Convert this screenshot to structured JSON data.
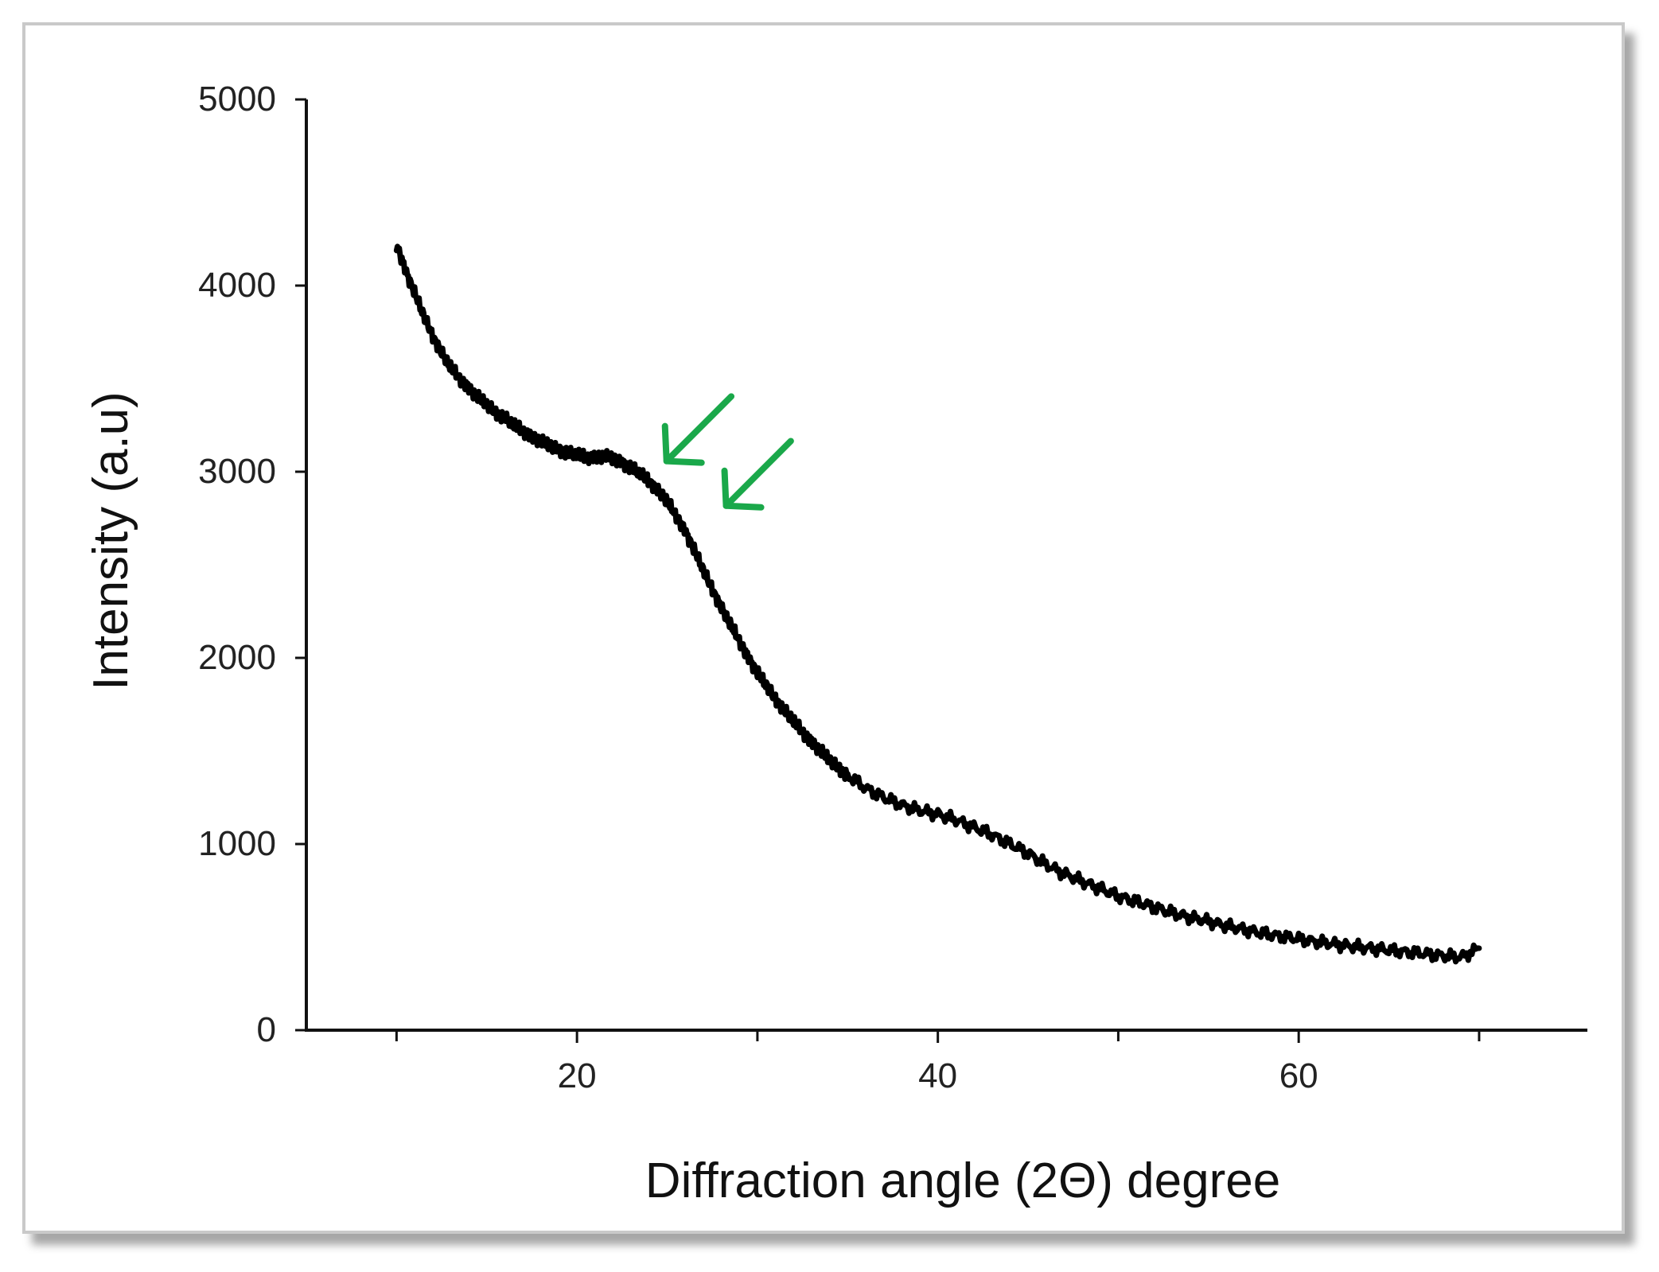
{
  "chart_data": {
    "type": "line",
    "title": "",
    "xlabel": "Diffraction angle (2Θ) degree",
    "ylabel": "Intensity (a.u)",
    "xlim": [
      5,
      76
    ],
    "ylim": [
      0,
      5000
    ],
    "x_ticks": [
      "20",
      "40",
      "60"
    ],
    "x_tick_values": [
      20,
      40,
      60
    ],
    "x_minor_tick_values": [
      10,
      30,
      50,
      70
    ],
    "y_ticks": [
      "0",
      "1000",
      "2000",
      "3000",
      "4000",
      "5000"
    ],
    "y_tick_values": [
      0,
      1000,
      2000,
      3000,
      4000,
      5000
    ],
    "grid": false,
    "legend": "none",
    "series": [
      {
        "color": "#000000",
        "x": [
          10,
          10.5,
          11,
          11.5,
          12,
          12.5,
          13,
          13.5,
          14,
          14.5,
          15,
          15.5,
          16,
          16.5,
          17,
          17.5,
          18,
          18.5,
          19,
          19.5,
          20,
          20.5,
          21,
          21.5,
          22,
          22.5,
          23,
          23.5,
          24,
          24.5,
          25,
          25.5,
          26,
          26.5,
          27,
          27.5,
          28,
          28.5,
          29,
          29.5,
          30,
          30.5,
          31,
          31.5,
          32,
          32.5,
          33,
          33.5,
          34,
          34.5,
          35,
          36,
          37,
          38,
          39,
          40,
          41,
          42,
          43,
          44,
          45,
          46,
          47,
          48,
          49,
          50,
          51,
          52,
          53,
          54,
          55,
          56,
          57,
          58,
          59,
          60,
          61,
          62,
          63,
          64,
          65,
          66,
          67,
          68,
          69,
          70
        ],
        "y": [
          4220,
          4080,
          3960,
          3840,
          3730,
          3640,
          3560,
          3500,
          3450,
          3400,
          3360,
          3320,
          3290,
          3250,
          3220,
          3190,
          3160,
          3140,
          3120,
          3100,
          3090,
          3080,
          3080,
          3080,
          3070,
          3050,
          3020,
          2990,
          2950,
          2900,
          2840,
          2760,
          2680,
          2580,
          2470,
          2370,
          2270,
          2180,
          2090,
          2000,
          1920,
          1850,
          1780,
          1720,
          1660,
          1600,
          1550,
          1500,
          1450,
          1410,
          1370,
          1300,
          1250,
          1210,
          1180,
          1160,
          1130,
          1090,
          1050,
          1000,
          950,
          890,
          840,
          800,
          760,
          720,
          690,
          660,
          630,
          605,
          585,
          560,
          540,
          520,
          505,
          490,
          475,
          462,
          450,
          440,
          430,
          420,
          410,
          400,
          392,
          440
        ]
      }
    ],
    "annotations": [
      {
        "type": "arrow",
        "color": "#1aa84a",
        "points_to": {
          "x": 24.7,
          "y": 3040
        }
      },
      {
        "type": "arrow",
        "color": "#1aa84a",
        "points_to": {
          "x": 28.0,
          "y": 2800
        }
      }
    ]
  }
}
